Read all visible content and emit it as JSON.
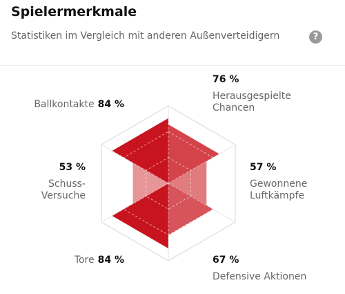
{
  "header": {
    "title": "Spielermerkmale",
    "subtitle": "Statistiken im Vergleich mit anderen Außenverteidigern",
    "help_icon": "?"
  },
  "chart_data": {
    "type": "radar",
    "categories": [
      "Ballkontakte",
      "Herausgespielte Chancen",
      "Gewonnene Luftkämpfe",
      "Defensive Aktionen",
      "Tore",
      "Schuss-Versuche"
    ],
    "values": [
      84,
      76,
      57,
      67,
      84,
      53
    ],
    "value_labels": [
      "84 %",
      "76 %",
      "57 %",
      "67 %",
      "84 %",
      "53 %"
    ],
    "colors": [
      "#c8141f",
      "#d4434a",
      "#e07b7e",
      "#d7545a",
      "#c8141f",
      "#e79698"
    ],
    "rlim": [
      0,
      100
    ]
  }
}
